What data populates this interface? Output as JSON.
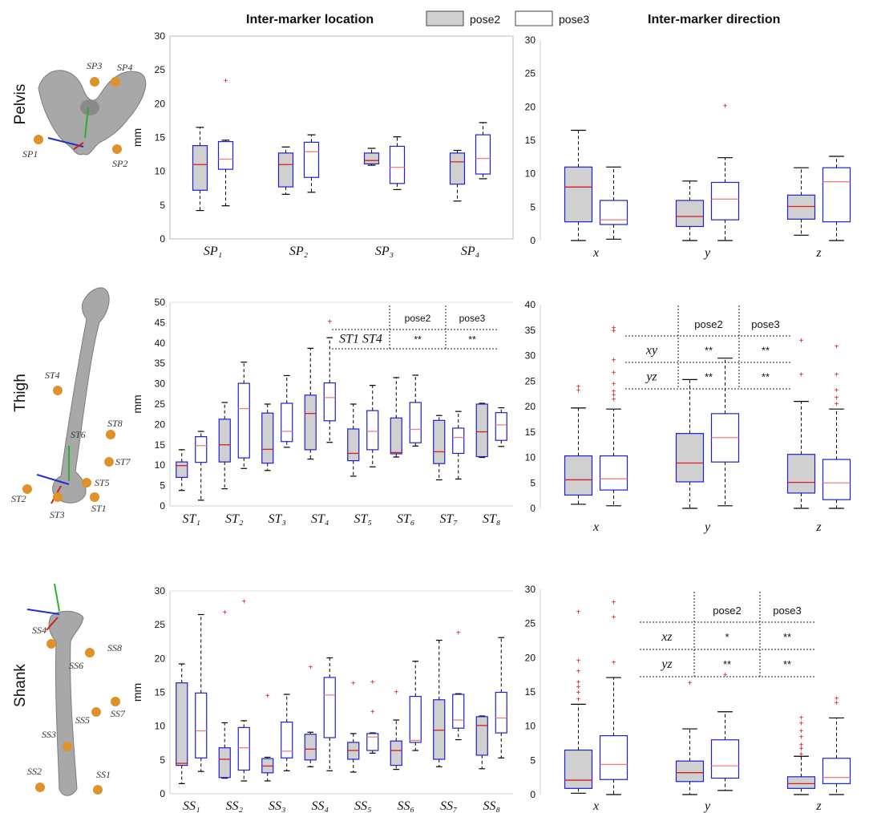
{
  "header": {
    "location_title": "Inter-marker location",
    "direction_title": "Inter-marker direction",
    "legend": [
      {
        "label": "pose2",
        "fill": "#d0d0d0"
      },
      {
        "label": "pose3",
        "fill": "#ffffff"
      }
    ]
  },
  "colors": {
    "box_edge": "#1f1fd0",
    "median_pose2": "#d42020",
    "median_pose3": "#f08080",
    "outlier": "#e01010",
    "bone": "#a9a9a9",
    "marker": "#e0922a"
  },
  "rows": [
    {
      "label": "Pelvis",
      "markers": [
        "SP1",
        "SP2",
        "SP3",
        "SP4"
      ]
    },
    {
      "label": "Thigh",
      "markers": [
        "ST1",
        "ST2",
        "ST3",
        "ST4",
        "ST5",
        "ST6",
        "ST7",
        "ST8"
      ]
    },
    {
      "label": "Shank",
      "markers": [
        "SS1",
        "SS2",
        "SS3",
        "SS4",
        "SS5",
        "SS6",
        "SS7",
        "SS8"
      ]
    }
  ],
  "chart_data": [
    {
      "type": "box",
      "id": "pelvis-location",
      "ylabel": "mm",
      "ylim": [
        0,
        30
      ],
      "yticks": [
        0,
        5,
        10,
        15,
        20,
        25,
        30
      ],
      "categories": [
        {
          "base": "SP",
          "sub": "1"
        },
        {
          "base": "SP",
          "sub": "2"
        },
        {
          "base": "SP",
          "sub": "3"
        },
        {
          "base": "SP",
          "sub": "4"
        }
      ],
      "series": [
        {
          "name": "pose2",
          "boxes": [
            {
              "min": 4.2,
              "q1": 7.2,
              "median": 11.0,
              "q3": 13.8,
              "max": 16.5,
              "outliers": []
            },
            {
              "min": 6.6,
              "q1": 7.7,
              "median": 11.0,
              "q3": 12.7,
              "max": 13.6,
              "outliers": []
            },
            {
              "min": 10.9,
              "q1": 11.1,
              "median": 11.6,
              "q3": 12.7,
              "max": 13.4,
              "outliers": []
            },
            {
              "min": 5.6,
              "q1": 8.1,
              "median": 11.4,
              "q3": 12.7,
              "max": 13.1,
              "outliers": []
            }
          ]
        },
        {
          "name": "pose3",
          "boxes": [
            {
              "min": 4.9,
              "q1": 10.3,
              "median": 11.8,
              "q3": 14.4,
              "max": 14.6,
              "outliers": [
                23.5
              ]
            },
            {
              "min": 6.9,
              "q1": 9.1,
              "median": 12.9,
              "q3": 14.3,
              "max": 15.4,
              "outliers": []
            },
            {
              "min": 7.3,
              "q1": 8.2,
              "median": 10.6,
              "q3": 13.7,
              "max": 15.1,
              "outliers": []
            },
            {
              "min": 8.9,
              "q1": 9.6,
              "median": 11.9,
              "q3": 15.4,
              "max": 17.2,
              "outliers": []
            }
          ]
        }
      ]
    },
    {
      "type": "box",
      "id": "pelvis-direction",
      "ylim": [
        0,
        30
      ],
      "yticks": [
        0,
        5,
        10,
        15,
        20,
        25,
        30
      ],
      "categories": [
        "x",
        "y",
        "z"
      ],
      "series": [
        {
          "name": "pose2",
          "boxes": [
            {
              "min": 0.0,
              "q1": 2.8,
              "median": 8.0,
              "q3": 11.0,
              "max": 16.5,
              "outliers": []
            },
            {
              "min": 0.0,
              "q1": 2.1,
              "median": 3.6,
              "q3": 6.0,
              "max": 8.9,
              "outliers": []
            },
            {
              "min": 0.8,
              "q1": 3.2,
              "median": 5.1,
              "q3": 6.8,
              "max": 10.9,
              "outliers": []
            }
          ]
        },
        {
          "name": "pose3",
          "boxes": [
            {
              "min": 0.2,
              "q1": 2.4,
              "median": 3.1,
              "q3": 6.0,
              "max": 11.0,
              "outliers": []
            },
            {
              "min": 0.0,
              "q1": 3.1,
              "median": 6.2,
              "q3": 8.7,
              "max": 12.4,
              "outliers": [
                20.2
              ]
            },
            {
              "min": 0.0,
              "q1": 2.8,
              "median": 8.8,
              "q3": 10.9,
              "max": 12.6,
              "outliers": []
            }
          ]
        }
      ]
    },
    {
      "type": "box",
      "id": "thigh-location",
      "ylabel": "mm",
      "ylim": [
        0,
        50
      ],
      "yticks": [
        0,
        5,
        10,
        15,
        20,
        25,
        30,
        35,
        40,
        45,
        50
      ],
      "categories": [
        {
          "base": "ST",
          "sub": "1"
        },
        {
          "base": "ST",
          "sub": "2"
        },
        {
          "base": "ST",
          "sub": "3"
        },
        {
          "base": "ST",
          "sub": "4"
        },
        {
          "base": "ST",
          "sub": "5"
        },
        {
          "base": "ST",
          "sub": "6"
        },
        {
          "base": "ST",
          "sub": "7"
        },
        {
          "base": "ST",
          "sub": "8"
        }
      ],
      "series": [
        {
          "name": "pose2",
          "boxes": [
            {
              "min": 3.8,
              "q1": 7.0,
              "median": 9.9,
              "q3": 10.8,
              "max": 13.8,
              "outliers": []
            },
            {
              "min": 4.2,
              "q1": 10.8,
              "median": 15.0,
              "q3": 21.3,
              "max": 25.4,
              "outliers": []
            },
            {
              "min": 8.7,
              "q1": 10.5,
              "median": 13.9,
              "q3": 22.8,
              "max": 25.0,
              "outliers": []
            },
            {
              "min": 11.5,
              "q1": 13.8,
              "median": 22.7,
              "q3": 27.2,
              "max": 38.7,
              "outliers": []
            },
            {
              "min": 7.3,
              "q1": 11.1,
              "median": 12.9,
              "q3": 18.9,
              "max": 25.0,
              "outliers": []
            },
            {
              "min": 12.0,
              "q1": 12.8,
              "median": 13.1,
              "q3": 21.6,
              "max": 31.5,
              "outliers": []
            },
            {
              "min": 6.4,
              "q1": 10.4,
              "median": 13.3,
              "q3": 21.0,
              "max": 22.2,
              "outliers": []
            },
            {
              "min": 11.9,
              "q1": 12.1,
              "median": 18.2,
              "q3": 25.0,
              "max": 25.2,
              "outliers": []
            }
          ]
        },
        {
          "name": "pose3",
          "boxes": [
            {
              "min": 1.4,
              "q1": 10.7,
              "median": 14.8,
              "q3": 17.0,
              "max": 18.3,
              "outliers": []
            },
            {
              "min": 9.2,
              "q1": 11.8,
              "median": 23.9,
              "q3": 30.1,
              "max": 35.3,
              "outliers": []
            },
            {
              "min": 14.4,
              "q1": 15.8,
              "median": 18.3,
              "q3": 25.2,
              "max": 32.0,
              "outliers": []
            },
            {
              "min": 15.6,
              "q1": 20.9,
              "median": 26.6,
              "q3": 30.2,
              "max": 41.3,
              "outliers": [
                45.4
              ]
            },
            {
              "min": 9.6,
              "q1": 13.8,
              "median": 18.3,
              "q3": 23.4,
              "max": 29.6,
              "outliers": []
            },
            {
              "min": 14.7,
              "q1": 15.5,
              "median": 18.8,
              "q3": 25.4,
              "max": 32.1,
              "outliers": []
            },
            {
              "min": 6.6,
              "q1": 12.9,
              "median": 16.8,
              "q3": 19.1,
              "max": 23.2,
              "outliers": []
            },
            {
              "min": 14.6,
              "q1": 16.1,
              "median": 19.9,
              "q3": 22.9,
              "max": 24.1,
              "outliers": []
            }
          ]
        }
      ],
      "table": {
        "columns": [
          "",
          "pose2",
          "pose3"
        ],
        "rows": [
          [
            "ST1 ST4",
            "**",
            "**"
          ]
        ]
      }
    },
    {
      "type": "box",
      "id": "thigh-direction",
      "ylim": [
        0,
        40
      ],
      "yticks": [
        0,
        5,
        10,
        15,
        20,
        25,
        30,
        35,
        40
      ],
      "categories": [
        "x",
        "y",
        "z"
      ],
      "series": [
        {
          "name": "pose2",
          "boxes": [
            {
              "min": 0.8,
              "q1": 2.6,
              "median": 5.6,
              "q3": 10.3,
              "max": 19.7,
              "outliers": [
                23.2,
                24.0
              ]
            },
            {
              "min": 0.0,
              "q1": 5.2,
              "median": 8.9,
              "q3": 14.7,
              "max": 25.3,
              "outliers": []
            },
            {
              "min": 0.0,
              "q1": 3.0,
              "median": 5.1,
              "q3": 10.6,
              "max": 21.0,
              "outliers": [
                26.4,
                33.1
              ]
            }
          ]
        },
        {
          "name": "pose3",
          "boxes": [
            {
              "min": 0.5,
              "q1": 3.6,
              "median": 5.8,
              "q3": 10.3,
              "max": 19.5,
              "outliers": [
                21.5,
                22.4,
                23.1,
                24.6,
                26.8,
                29.2,
                35.0,
                35.5
              ]
            },
            {
              "min": 0.5,
              "q1": 9.1,
              "median": 13.9,
              "q3": 18.6,
              "max": 29.5,
              "outliers": []
            },
            {
              "min": 0.0,
              "q1": 1.7,
              "median": 5.0,
              "q3": 9.6,
              "max": 19.5,
              "outliers": [
                20.6,
                21.8,
                23.3,
                26.4,
                31.9
              ]
            }
          ]
        }
      ],
      "table": {
        "columns": [
          "",
          "pose2",
          "pose3"
        ],
        "rows": [
          [
            "xy",
            "**",
            "**"
          ],
          [
            "yz",
            "**",
            "**"
          ]
        ]
      }
    },
    {
      "type": "box",
      "id": "shank-location",
      "ylabel": "mm",
      "ylim": [
        0,
        30
      ],
      "yticks": [
        0,
        5,
        10,
        15,
        20,
        25,
        30
      ],
      "categories": [
        {
          "base": "SS",
          "sub": "1"
        },
        {
          "base": "SS",
          "sub": "2"
        },
        {
          "base": "SS",
          "sub": "3"
        },
        {
          "base": "SS",
          "sub": "4"
        },
        {
          "base": "SS",
          "sub": "5"
        },
        {
          "base": "SS",
          "sub": "6"
        },
        {
          "base": "SS",
          "sub": "7"
        },
        {
          "base": "SS",
          "sub": "8"
        }
      ],
      "series": [
        {
          "name": "pose2",
          "boxes": [
            {
              "min": 1.5,
              "q1": 4.2,
              "median": 4.5,
              "q3": 16.4,
              "max": 19.2,
              "outliers": []
            },
            {
              "min": 2.3,
              "q1": 2.4,
              "median": 5.1,
              "q3": 6.8,
              "max": 10.5,
              "outliers": [
                26.9
              ]
            },
            {
              "min": 1.9,
              "q1": 3.1,
              "median": 4.1,
              "q3": 5.2,
              "max": 5.4,
              "outliers": [
                14.6
              ]
            },
            {
              "min": 4.0,
              "q1": 5.0,
              "median": 6.6,
              "q3": 8.8,
              "max": 9.1,
              "outliers": [
                18.8
              ]
            },
            {
              "min": 3.2,
              "q1": 5.1,
              "median": 6.4,
              "q3": 7.6,
              "max": 8.9,
              "outliers": [
                16.4
              ]
            },
            {
              "min": 3.6,
              "q1": 4.2,
              "median": 6.4,
              "q3": 7.8,
              "max": 10.9,
              "outliers": [
                15.1
              ]
            },
            {
              "min": 4.0,
              "q1": 5.1,
              "median": 9.4,
              "q3": 13.9,
              "max": 22.7,
              "outliers": []
            },
            {
              "min": 3.7,
              "q1": 5.7,
              "median": 10.1,
              "q3": 11.4,
              "max": 11.5,
              "outliers": []
            }
          ]
        },
        {
          "name": "pose3",
          "boxes": [
            {
              "min": 3.3,
              "q1": 5.3,
              "median": 9.3,
              "q3": 14.9,
              "max": 26.5,
              "outliers": []
            },
            {
              "min": 1.9,
              "q1": 3.5,
              "median": 6.8,
              "q3": 9.8,
              "max": 10.8,
              "outliers": [
                28.5
              ]
            },
            {
              "min": 3.4,
              "q1": 5.3,
              "median": 6.3,
              "q3": 10.6,
              "max": 14.7,
              "outliers": []
            },
            {
              "min": 3.4,
              "q1": 8.3,
              "median": 14.6,
              "q3": 17.2,
              "max": 20.1,
              "outliers": []
            },
            {
              "min": 6.0,
              "q1": 6.4,
              "median": 8.4,
              "q3": 8.9,
              "max": 9.0,
              "outliers": [
                12.2,
                16.6
              ]
            },
            {
              "min": 6.4,
              "q1": 7.6,
              "median": 7.9,
              "q3": 14.4,
              "max": 19.6,
              "outliers": []
            },
            {
              "min": 8.0,
              "q1": 9.7,
              "median": 10.9,
              "q3": 14.7,
              "max": 14.8,
              "outliers": [
                23.9
              ]
            },
            {
              "min": 5.3,
              "q1": 9.0,
              "median": 11.2,
              "q3": 15.0,
              "max": 23.1,
              "outliers": []
            }
          ]
        }
      ]
    },
    {
      "type": "box",
      "id": "shank-direction",
      "ylim": [
        0,
        30
      ],
      "yticks": [
        0,
        5,
        10,
        15,
        20,
        25,
        30
      ],
      "categories": [
        "x",
        "y",
        "z"
      ],
      "series": [
        {
          "name": "pose2",
          "boxes": [
            {
              "min": 0.2,
              "q1": 0.9,
              "median": 2.1,
              "q3": 6.5,
              "max": 13.2,
              "outliers": [
                14.0,
                15.0,
                15.8,
                16.5,
                18.1,
                19.6,
                26.8
              ]
            },
            {
              "min": 0.0,
              "q1": 1.9,
              "median": 3.2,
              "q3": 4.9,
              "max": 9.6,
              "outliers": [
                16.4
              ]
            },
            {
              "min": 0.0,
              "q1": 0.9,
              "median": 1.6,
              "q3": 2.6,
              "max": 5.6,
              "outliers": [
                6.0,
                6.8,
                7.4,
                8.5,
                9.4,
                10.5,
                11.3
              ]
            }
          ]
        },
        {
          "name": "pose3",
          "boxes": [
            {
              "min": 0.0,
              "q1": 2.2,
              "median": 4.4,
              "q3": 8.6,
              "max": 17.1,
              "outliers": [
                19.4,
                26.0,
                28.2
              ]
            },
            {
              "min": 0.6,
              "q1": 2.4,
              "median": 4.2,
              "q3": 8.0,
              "max": 12.1,
              "outliers": [
                17.6
              ]
            },
            {
              "min": 0.0,
              "q1": 1.6,
              "median": 2.5,
              "q3": 5.3,
              "max": 11.2,
              "outliers": [
                13.5,
                14.1
              ]
            }
          ]
        }
      ],
      "table": {
        "columns": [
          "",
          "pose2",
          "pose3"
        ],
        "rows": [
          [
            "xz",
            "*",
            "**"
          ],
          [
            "yz",
            "**",
            "**"
          ]
        ]
      }
    }
  ]
}
